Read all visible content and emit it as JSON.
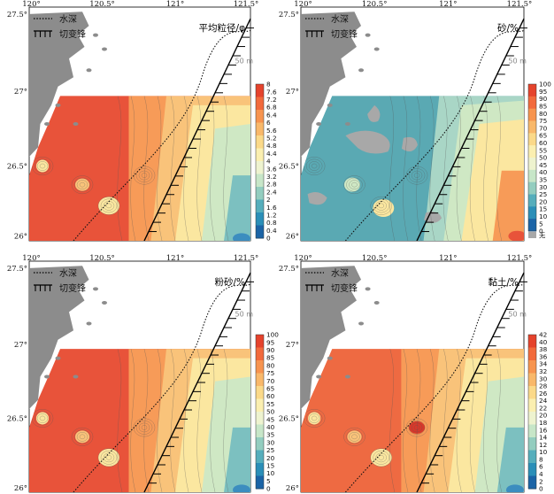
{
  "legend": {
    "isobath_label": "水深",
    "fault_label": "切变锋"
  },
  "isobath_value": "50 m",
  "coords": {
    "lon": [
      "120°",
      "120.5°",
      "121°",
      "121.5°"
    ],
    "lat": [
      "27.5°",
      "27°",
      "26.5°",
      "26°"
    ]
  },
  "panels": [
    {
      "id": "mean-grain-size",
      "title": "平均粒径/φ",
      "colorbar": [
        "8",
        "7.6",
        "7.2",
        "6.8",
        "6.4",
        "6",
        "5.6",
        "5.2",
        "4.8",
        "4.4",
        "4",
        "3.6",
        "3.2",
        "2.8",
        "2.4",
        "2",
        "1.6",
        "1.2",
        "0.8",
        "0.4",
        "0"
      ],
      "colorbar_colors": [
        "#e5432c",
        "#f26a3c",
        "#f7944f",
        "#f9b86a",
        "#fbd989",
        "#fbefb0",
        "#eef3cf",
        "#c7e6c8",
        "#93cdbf",
        "#56aebc",
        "#2b8fb8",
        "#1b64a6"
      ]
    },
    {
      "id": "sand",
      "title": "砂/%",
      "colorbar": [
        "100",
        "95",
        "90",
        "85",
        "80",
        "75",
        "70",
        "65",
        "60",
        "55",
        "50",
        "45",
        "40",
        "35",
        "30",
        "25",
        "20",
        "15",
        "10",
        "5",
        "0",
        "无"
      ],
      "no_data_color": "#a8a8a8",
      "colorbar_colors": [
        "#e5432c",
        "#f26a3c",
        "#f7944f",
        "#f9b86a",
        "#fbd989",
        "#fbefb0",
        "#eef3cf",
        "#c7e6c8",
        "#93cdbf",
        "#56aebc",
        "#2b8fb8",
        "#1b64a6"
      ]
    },
    {
      "id": "silt",
      "title": "粉砂/%",
      "colorbar": [
        "100",
        "95",
        "90",
        "85",
        "80",
        "75",
        "70",
        "65",
        "60",
        "55",
        "50",
        "45",
        "40",
        "35",
        "30",
        "25",
        "20",
        "15",
        "10",
        "5",
        "0"
      ],
      "colorbar_colors": [
        "#e5432c",
        "#f26a3c",
        "#f7944f",
        "#f9b86a",
        "#fbd989",
        "#fbefb0",
        "#eef3cf",
        "#c7e6c8",
        "#93cdbf",
        "#56aebc",
        "#2b8fb8",
        "#1b64a6"
      ]
    },
    {
      "id": "clay",
      "title": "黏土/%",
      "colorbar": [
        "42",
        "40",
        "38",
        "36",
        "34",
        "32",
        "30",
        "28",
        "26",
        "24",
        "22",
        "20",
        "18",
        "16",
        "14",
        "12",
        "10",
        "8",
        "6",
        "4",
        "2",
        "0"
      ],
      "colorbar_colors": [
        "#e5432c",
        "#f26a3c",
        "#f7944f",
        "#f9b86a",
        "#fbd989",
        "#fbefb0",
        "#eef3cf",
        "#c7e6c8",
        "#93cdbf",
        "#56aebc",
        "#2b8fb8",
        "#1b64a6"
      ]
    }
  ],
  "colors": {
    "land": "#8c8c8c",
    "red": "#e8533a",
    "orange": "#f79b58",
    "yellow": "#fbe7a0",
    "green": "#cfe8c4",
    "blue": "#3c8dbf",
    "teal": "#5aa9b3"
  }
}
